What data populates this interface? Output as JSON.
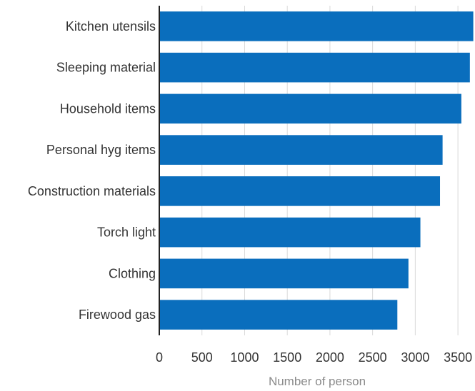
{
  "chart_data": {
    "type": "bar",
    "orientation": "horizontal",
    "categories": [
      "Kitchen utensils",
      "Sleeping material",
      "Household items",
      "Personal hyg items",
      "Construction materials",
      "Torch light",
      "Clothing",
      "Firewood gas"
    ],
    "values": [
      3680,
      3640,
      3540,
      3320,
      3290,
      3060,
      2920,
      2790
    ],
    "title": "",
    "xlabel": "Number of person",
    "ylabel": "",
    "xlim": [
      0,
      3700
    ],
    "x_ticks": [
      0,
      500,
      1000,
      1500,
      2000,
      2500,
      3000,
      3500
    ],
    "x_tick_labels": [
      "0",
      "500",
      "1000",
      "1500",
      "2000",
      "2500",
      "3000",
      "3500"
    ],
    "grid": "vertical",
    "bar_color": "#0a6ebd",
    "legend": "none"
  }
}
